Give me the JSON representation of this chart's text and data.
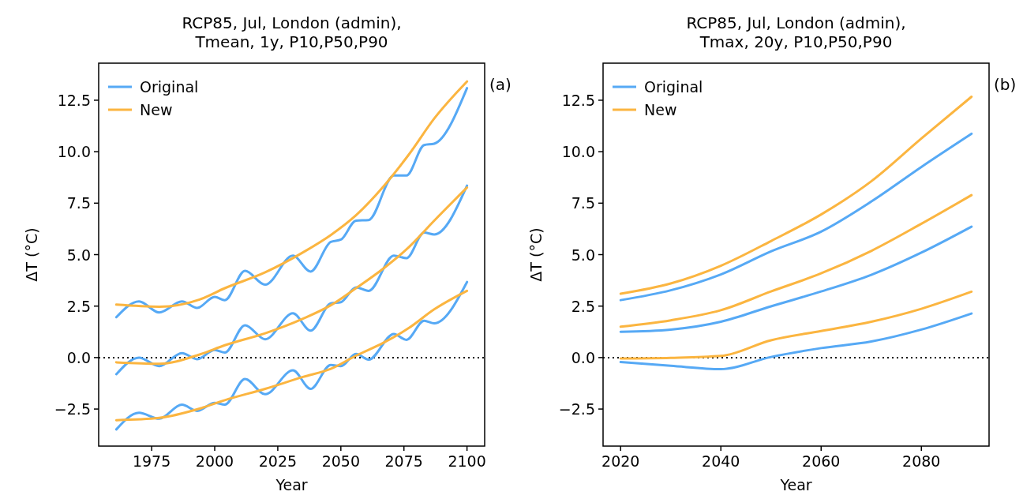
{
  "chart_data": [
    {
      "type": "line",
      "title": "RCP85, Jul, London (admin),\nTmean, 1y, P10,P50,P90",
      "xlabel": "Year",
      "ylabel": "ΔT (°C)",
      "xlim": [
        1954,
        2107
      ],
      "ylim": [
        -4.3,
        14.3
      ],
      "xticks": [
        1975,
        2000,
        2025,
        2050,
        2075,
        2100
      ],
      "yticks": [
        {
          "value": -2.5,
          "label": "−2.5"
        },
        {
          "value": 0,
          "label": "0.0"
        },
        2.5,
        {
          "value": 5,
          "label": "5.0"
        },
        7.5,
        {
          "value": 10,
          "label": "10.0"
        },
        12.5
      ],
      "legend": "top left",
      "line_style": "solid",
      "annotations": [
        "(a)"
      ],
      "ref_lines": [
        {
          "axis": "y",
          "value": 0,
          "color": "#000000",
          "line_style": "dotted"
        }
      ],
      "series": [
        {
          "name": "Original",
          "color": "#56a9f5",
          "x": [
            1961,
            1970,
            1978,
            1987,
            1993,
            2000,
            2004,
            2012,
            2020,
            2031,
            2038,
            2046,
            2050,
            2056,
            2061,
            2071,
            2076,
            2083,
            2087,
            2100
          ],
          "values": [
            1.96,
            2.73,
            2.19,
            2.73,
            2.41,
            2.95,
            2.79,
            4.21,
            3.54,
            4.95,
            4.18,
            5.62,
            5.73,
            6.65,
            6.68,
            8.84,
            8.84,
            10.32,
            10.39,
            13.09
          ]
        },
        {
          "color": "#56a9f5",
          "x": [
            1961,
            1970,
            1978,
            1987,
            1993,
            2000,
            2004,
            2012,
            2020,
            2031,
            2038,
            2046,
            2050,
            2056,
            2061,
            2071,
            2076,
            2083,
            2087,
            2100
          ],
          "values": [
            -0.81,
            0,
            -0.42,
            0.22,
            -0.08,
            0.37,
            0.24,
            1.57,
            0.89,
            2.15,
            1.31,
            2.63,
            2.69,
            3.41,
            3.24,
            4.95,
            4.83,
            6.07,
            5.98,
            8.35
          ]
        },
        {
          "color": "#56a9f5",
          "x": [
            1961,
            1970,
            1978,
            1987,
            1993,
            2000,
            2004,
            2012,
            2020,
            2031,
            2038,
            2046,
            2050,
            2056,
            2061,
            2071,
            2076,
            2083,
            2087,
            2100
          ],
          "values": [
            -3.49,
            -2.68,
            -2.97,
            -2.29,
            -2.59,
            -2.2,
            -2.29,
            -1.04,
            -1.78,
            -0.62,
            -1.52,
            -0.36,
            -0.42,
            0.18,
            -0.1,
            1.15,
            0.86,
            1.79,
            1.66,
            3.67
          ]
        },
        {
          "name": "New",
          "color": "#fbb540",
          "x": [
            1961,
            1978,
            1994,
            2004,
            2020,
            2035,
            2046,
            2056,
            2067,
            2077,
            2087,
            2100
          ],
          "values": [
            2.57,
            2.47,
            2.82,
            3.37,
            4.14,
            5.11,
            5.95,
            6.91,
            8.33,
            9.87,
            11.61,
            13.41
          ]
        },
        {
          "color": "#fbb540",
          "x": [
            1961,
            1978,
            1994,
            2004,
            2020,
            2035,
            2046,
            2056,
            2067,
            2077,
            2087,
            2100
          ],
          "values": [
            -0.23,
            -0.3,
            0.15,
            0.6,
            1.18,
            1.89,
            2.54,
            3.37,
            4.34,
            5.37,
            6.65,
            8.26
          ]
        },
        {
          "color": "#fbb540",
          "x": [
            1961,
            1978,
            1994,
            2004,
            2020,
            2035,
            2046,
            2056,
            2067,
            2077,
            2087,
            2100
          ],
          "values": [
            -3.04,
            -2.93,
            -2.48,
            -2.07,
            -1.52,
            -0.94,
            -0.55,
            0.09,
            0.73,
            1.44,
            2.34,
            3.24
          ]
        }
      ]
    },
    {
      "type": "line",
      "title": "RCP85, Jul, London (admin),\nTmax, 20y, P10,P50,P90",
      "xlabel": "Year",
      "ylabel": "ΔT (°C)",
      "xlim": [
        2016.5,
        2093.5
      ],
      "ylim": [
        -4.3,
        14.3
      ],
      "xticks": [
        2020,
        2040,
        2060,
        2080
      ],
      "yticks": [
        {
          "value": -2.5,
          "label": "−2.5"
        },
        {
          "value": 0,
          "label": "0.0"
        },
        2.5,
        {
          "value": 5,
          "label": "5.0"
        },
        7.5,
        {
          "value": 10,
          "label": "10.0"
        },
        12.5
      ],
      "legend": "top left",
      "line_style": "solid",
      "annotations": [
        "(b)"
      ],
      "ref_lines": [
        {
          "axis": "y",
          "value": 0,
          "color": "#000000",
          "line_style": "dotted"
        }
      ],
      "series": [
        {
          "name": "Original",
          "color": "#56a9f5",
          "x": [
            2020,
            2030,
            2040,
            2050,
            2060,
            2070,
            2080,
            2090
          ],
          "values": [
            2.79,
            3.27,
            4.04,
            5.16,
            6.12,
            7.58,
            9.26,
            10.87
          ]
        },
        {
          "color": "#56a9f5",
          "x": [
            2020,
            2030,
            2040,
            2050,
            2060,
            2070,
            2080,
            2090
          ],
          "values": [
            1.25,
            1.36,
            1.74,
            2.49,
            3.21,
            4.02,
            5.1,
            6.36
          ]
        },
        {
          "color": "#56a9f5",
          "x": [
            2020,
            2030,
            2040,
            2050,
            2060,
            2070,
            2080,
            2090
          ],
          "values": [
            -0.22,
            -0.4,
            -0.56,
            0.03,
            0.46,
            0.78,
            1.36,
            2.14
          ]
        },
        {
          "name": "New",
          "color": "#fbb540",
          "x": [
            2020,
            2030,
            2040,
            2050,
            2060,
            2070,
            2080,
            2090
          ],
          "values": [
            3.1,
            3.6,
            4.46,
            5.66,
            6.95,
            8.56,
            10.64,
            12.67
          ]
        },
        {
          "color": "#fbb540",
          "x": [
            2020,
            2030,
            2040,
            2050,
            2060,
            2070,
            2080,
            2090
          ],
          "values": [
            1.5,
            1.81,
            2.3,
            3.21,
            4.09,
            5.18,
            6.5,
            7.89
          ]
        },
        {
          "color": "#fbb540",
          "x": [
            2020,
            2030,
            2040,
            2050,
            2060,
            2070,
            2080,
            2090
          ],
          "values": [
            -0.04,
            -0.01,
            0.08,
            0.84,
            1.29,
            1.74,
            2.37,
            3.2
          ]
        }
      ]
    }
  ]
}
